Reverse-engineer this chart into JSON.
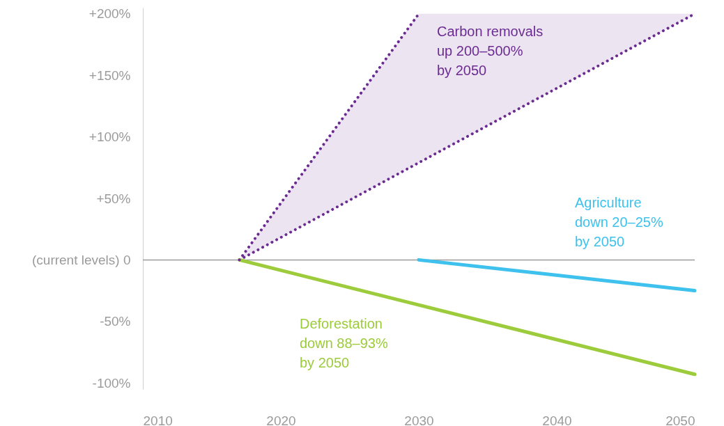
{
  "chart_data": {
    "type": "line",
    "xlim": [
      2010,
      2050
    ],
    "xticks": [
      2010,
      2020,
      2030,
      2040,
      2050
    ],
    "ylim": [
      -105,
      205
    ],
    "yticks": [
      {
        "value": 200,
        "label": "+200%"
      },
      {
        "value": 150,
        "label": "+150%"
      },
      {
        "value": 100,
        "label": "+100%"
      },
      {
        "value": 50,
        "label": "+50%"
      },
      {
        "value": 0,
        "label": "(current levels)   0"
      },
      {
        "value": -50,
        "label": "-50%"
      },
      {
        "value": -100,
        "label": "-100%"
      }
    ],
    "grid": false,
    "ref_lines": [
      {
        "axis": "y",
        "value": 0,
        "color": "#9b9b9b"
      }
    ],
    "series": [
      {
        "color": "#6b2c91",
        "line_style": "dotted",
        "x": [
          2017,
          2030,
          2050
        ],
        "values": [
          0,
          79,
          200
        ],
        "lower": [
          0,
          79,
          200
        ],
        "upper": [
          0,
          200,
          200
        ]
      },
      {
        "color": "#3ec1ec",
        "line_style": "solid",
        "x": [
          2030,
          2050
        ],
        "values": [
          0,
          -25
        ]
      },
      {
        "color": "#9ccb3b",
        "line_style": "solid",
        "x": [
          2017,
          2050
        ],
        "values": [
          0,
          -93
        ]
      },
      {
        "color": "#6b2c91",
        "line_style": "dotted",
        "x": [
          2017,
          2030
        ],
        "values": [
          0,
          200
        ]
      }
    ],
    "annotations": [
      "Carbon removals\nup 200–500%\nby 2050",
      "Agriculture\ndown 20–25%\nby 2050",
      "Deforestation\ndown 88–93%\nby 2050"
    ]
  }
}
